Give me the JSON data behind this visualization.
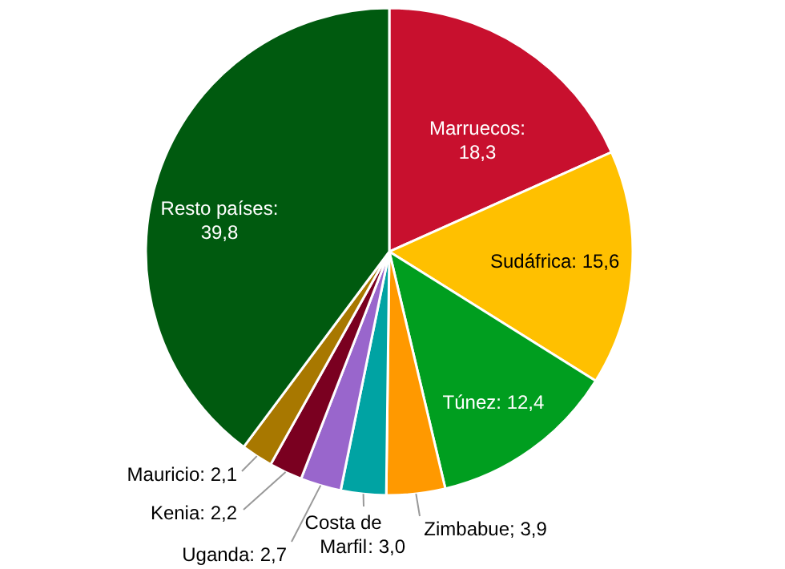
{
  "chart_data": {
    "type": "pie",
    "categories": [
      "Marruecos",
      "Sudáfrica",
      "Túnez",
      "Zimbabue",
      "Costa de Marfil",
      "Uganda",
      "Kenia",
      "Mauricio",
      "Resto países"
    ],
    "values": [
      18.3,
      15.6,
      12.4,
      3.9,
      3.0,
      2.7,
      2.2,
      2.1,
      39.8
    ],
    "colors": [
      "#c8102e",
      "#ffc000",
      "#009e1f",
      "#ff9900",
      "#00a3a3",
      "#9966cc",
      "#7a0020",
      "#a87800",
      "#005a0f"
    ],
    "value_labels": [
      ": 18,3",
      ": 15,6",
      ": 12,4",
      "; 3,9",
      ": 3,0",
      ": 2,7",
      ": 2,2",
      ": 2,1",
      ": 39,8"
    ]
  }
}
